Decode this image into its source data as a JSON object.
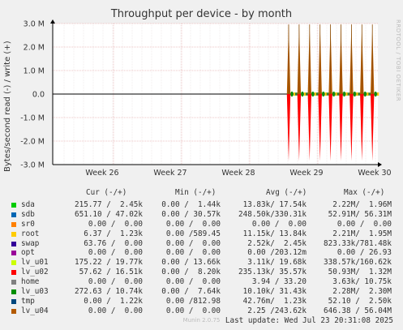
{
  "chart_data": {
    "type": "line",
    "title": "Throughput per device - by month",
    "ylabel": "Bytes/second read (-) / write (+)",
    "side_label": "RRDTOOL / TOBI OETIKER",
    "y_ticks": [
      "3.0 M",
      "2.0 M",
      "1.0 M",
      "0.0",
      "-1.0 M",
      "-2.0 M",
      "-3.0 M"
    ],
    "ylim": [
      -3000000,
      3000000
    ],
    "x_ticks": [
      "Week 26",
      "Week 27",
      "Week 28",
      "Week 29",
      "Week 30"
    ],
    "spike_count": 9,
    "spike_write_peak": 2960000,
    "spike_read_peak": -2850000,
    "grid": true
  },
  "legend": {
    "headers": {
      "cur": "Cur (-/+)",
      "min": "Min (-/+)",
      "avg": "Avg (-/+)",
      "max": "Max (-/+)"
    },
    "rows": [
      {
        "name": "sda",
        "color": "#00cc00",
        "cur": "215.77 /  2.45k",
        "min": "0.00 /  1.44k",
        "avg": "13.83k/ 17.54k",
        "max": "2.22M/  1.96M"
      },
      {
        "name": "sdb",
        "color": "#0066b3",
        "cur": "651.10 / 47.02k",
        "min": "0.00 / 30.57k",
        "avg": "248.50k/330.31k",
        "max": "52.91M/ 56.31M"
      },
      {
        "name": "sr0",
        "color": "#ff8000",
        "cur": "0.00 /  0.00",
        "min": "0.00 /  0.00",
        "avg": "0.00 /  0.00",
        "max": "0.00 /  0.00"
      },
      {
        "name": "root",
        "color": "#ffcc00",
        "cur": "6.37 /  1.23k",
        "min": "0.00 /589.45",
        "avg": "11.15k/ 13.84k",
        "max": "2.21M/  1.95M"
      },
      {
        "name": "swap",
        "color": "#330099",
        "cur": "63.76 /  0.00",
        "min": "0.00 /  0.00",
        "avg": "2.52k/  2.45k",
        "max": "823.33k/781.48k"
      },
      {
        "name": "opt",
        "color": "#990099",
        "cur": "0.00 /  0.00",
        "min": "0.00 /  0.00",
        "avg": "0.00 /203.12m",
        "max": "0.00 / 26.93"
      },
      {
        "name": "lv_u01",
        "color": "#ccff00",
        "cur": "175.22 / 19.77k",
        "min": "0.00 / 13.66k",
        "avg": "3.11k/ 19.68k",
        "max": "338.57k/160.62k"
      },
      {
        "name": "lv_u02",
        "color": "#ff0000",
        "cur": "57.62 / 16.51k",
        "min": "0.00 /  8.20k",
        "avg": "235.13k/ 35.57k",
        "max": "50.93M/  1.32M"
      },
      {
        "name": "home",
        "color": "#808080",
        "cur": "0.00 /  0.00",
        "min": "0.00 /  0.00",
        "avg": "3.94 / 33.20",
        "max": "3.63k/ 10.75k"
      },
      {
        "name": "lv_u03",
        "color": "#008f00",
        "cur": "272.63 / 10.74k",
        "min": "0.00 /  7.64k",
        "avg": "10.10k/ 31.43k",
        "max": "2.28M/  2.30M"
      },
      {
        "name": "tmp",
        "color": "#00487d",
        "cur": "0.00 /  1.22k",
        "min": "0.00 /812.98",
        "avg": "42.76m/  1.23k",
        "max": "52.10 /  2.50k"
      },
      {
        "name": "lv_u04",
        "color": "#b35a00",
        "cur": "0.00 /  0.00",
        "min": "0.00 /  0.00",
        "avg": "2.25 /243.62k",
        "max": "646.38 / 56.04M"
      }
    ]
  },
  "last_update": "Last update: Wed Jul 23 20:31:08 2025",
  "footer": "Munin 2.0.75"
}
